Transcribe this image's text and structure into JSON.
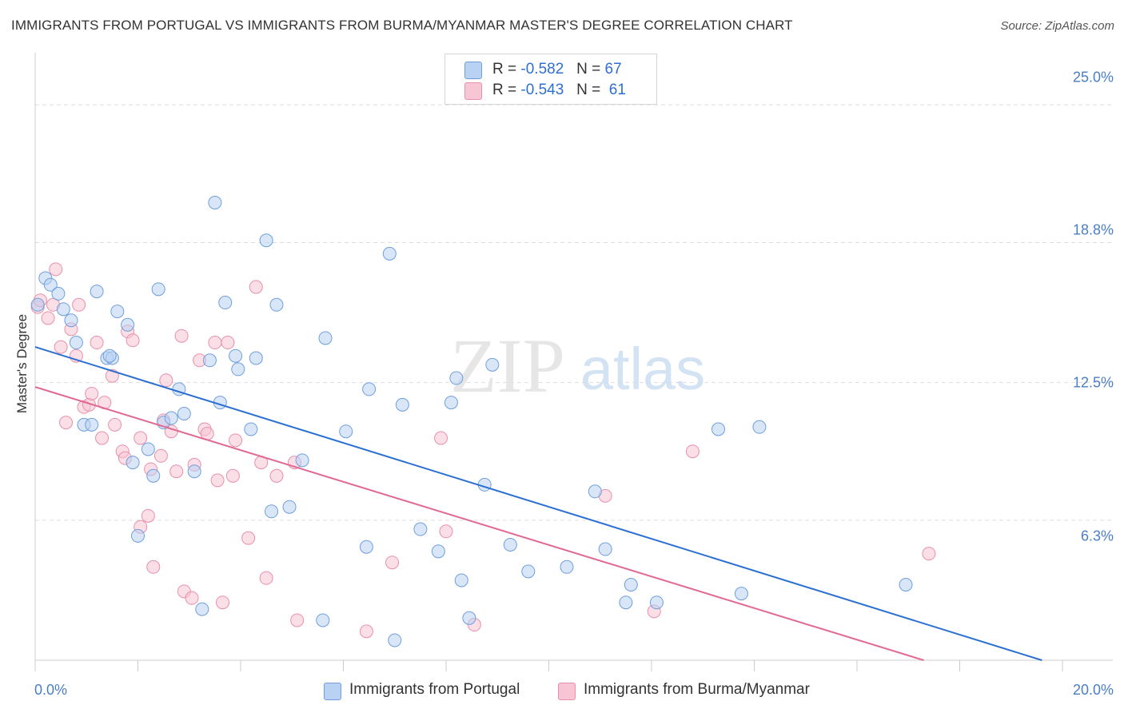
{
  "title": "IMMIGRANTS FROM PORTUGAL VS IMMIGRANTS FROM BURMA/MYANMAR MASTER'S DEGREE CORRELATION CHART",
  "source": "Source: ZipAtlas.com",
  "watermark": {
    "zip": "ZIP",
    "atlas": "atlas"
  },
  "colors": {
    "blue_fill": "#b9d2f3",
    "blue_stroke": "#6e9fdc",
    "blue_line": "#2b6fd1",
    "pink_fill": "#f7c5d3",
    "pink_stroke": "#e890ab",
    "pink_line": "#e06a94",
    "grid": "#dddddd",
    "axis_text": "#4a7fc6"
  },
  "legend": {
    "r_label": "R =",
    "n_label": "N =",
    "series": [
      {
        "r": "-0.582",
        "n": "67"
      },
      {
        "r": "-0.543",
        "n": "61"
      }
    ]
  },
  "bottom_legend": [
    "Immigrants from Portugal",
    "Immigrants from Burma/Myanmar"
  ],
  "chart_data": {
    "type": "scatter",
    "title": "IMMIGRANTS FROM PORTUGAL VS IMMIGRANTS FROM BURMA/MYANMAR MASTER'S DEGREE CORRELATION CHART",
    "xlabel": "",
    "ylabel": "Master's Degree",
    "xlim": [
      0,
      20
    ],
    "ylim": [
      0,
      27.2
    ],
    "x_tick_labels": [
      "0.0%",
      "20.0%"
    ],
    "y_ticks": [
      6.3,
      12.5,
      18.8,
      25.0
    ],
    "y_tick_labels": [
      "6.3%",
      "12.5%",
      "18.8%",
      "25.0%"
    ],
    "grid": "horizontal dashed",
    "legend_position": "top-center",
    "series": [
      {
        "name": "Immigrants from Portugal",
        "r": -0.582,
        "n": 67,
        "trend": {
          "x0": 0,
          "y0": 14.1,
          "x1": 19.6,
          "y1": 0
        },
        "points": [
          [
            0.05,
            16.0
          ],
          [
            0.2,
            17.2
          ],
          [
            0.3,
            16.9
          ],
          [
            0.45,
            16.5
          ],
          [
            0.55,
            15.8
          ],
          [
            0.7,
            15.3
          ],
          [
            0.8,
            14.3
          ],
          [
            0.95,
            10.6
          ],
          [
            1.1,
            10.6
          ],
          [
            1.2,
            16.6
          ],
          [
            1.4,
            13.6
          ],
          [
            1.5,
            13.6
          ],
          [
            1.6,
            15.7
          ],
          [
            1.8,
            15.1
          ],
          [
            1.9,
            8.9
          ],
          [
            2.0,
            5.6
          ],
          [
            2.2,
            9.5
          ],
          [
            2.3,
            8.3
          ],
          [
            2.4,
            16.7
          ],
          [
            2.5,
            10.7
          ],
          [
            2.65,
            10.9
          ],
          [
            2.8,
            12.2
          ],
          [
            2.9,
            11.1
          ],
          [
            3.1,
            8.5
          ],
          [
            3.25,
            2.3
          ],
          [
            3.4,
            13.5
          ],
          [
            3.5,
            20.6
          ],
          [
            3.6,
            11.6
          ],
          [
            3.7,
            16.1
          ],
          [
            3.9,
            13.7
          ],
          [
            3.95,
            13.1
          ],
          [
            4.2,
            10.4
          ],
          [
            4.3,
            13.6
          ],
          [
            4.5,
            18.9
          ],
          [
            4.6,
            6.7
          ],
          [
            4.7,
            16.0
          ],
          [
            4.95,
            6.9
          ],
          [
            5.2,
            9.0
          ],
          [
            5.6,
            1.8
          ],
          [
            5.65,
            14.5
          ],
          [
            6.05,
            10.3
          ],
          [
            6.45,
            5.1
          ],
          [
            6.5,
            12.2
          ],
          [
            6.9,
            18.3
          ],
          [
            7.0,
            0.9
          ],
          [
            7.15,
            11.5
          ],
          [
            7.5,
            5.9
          ],
          [
            7.85,
            4.9
          ],
          [
            8.1,
            11.6
          ],
          [
            8.2,
            12.7
          ],
          [
            8.3,
            3.6
          ],
          [
            8.45,
            1.9
          ],
          [
            8.75,
            7.9
          ],
          [
            8.9,
            13.3
          ],
          [
            9.25,
            5.2
          ],
          [
            9.6,
            4.0
          ],
          [
            10.35,
            4.2
          ],
          [
            10.9,
            7.6
          ],
          [
            11.1,
            5.0
          ],
          [
            11.5,
            2.6
          ],
          [
            11.6,
            3.4
          ],
          [
            12.1,
            2.6
          ],
          [
            13.3,
            10.4
          ],
          [
            13.75,
            3.0
          ],
          [
            14.1,
            10.5
          ],
          [
            16.95,
            3.4
          ],
          [
            1.45,
            13.7
          ]
        ]
      },
      {
        "name": "Immigrants from Burma/Myanmar",
        "r": -0.543,
        "n": 61,
        "trend": {
          "x0": 0,
          "y0": 12.3,
          "x1": 17.3,
          "y1": 0
        },
        "points": [
          [
            0.05,
            15.9
          ],
          [
            0.1,
            16.2
          ],
          [
            0.25,
            15.4
          ],
          [
            0.35,
            16.0
          ],
          [
            0.4,
            17.6
          ],
          [
            0.5,
            14.1
          ],
          [
            0.6,
            10.7
          ],
          [
            0.7,
            14.9
          ],
          [
            0.8,
            13.7
          ],
          [
            0.85,
            16.0
          ],
          [
            0.95,
            11.4
          ],
          [
            1.05,
            11.5
          ],
          [
            1.1,
            12.0
          ],
          [
            1.2,
            14.3
          ],
          [
            1.3,
            10.0
          ],
          [
            1.35,
            11.6
          ],
          [
            1.5,
            12.8
          ],
          [
            1.55,
            10.6
          ],
          [
            1.7,
            9.4
          ],
          [
            1.75,
            9.1
          ],
          [
            1.8,
            14.8
          ],
          [
            1.9,
            14.4
          ],
          [
            2.05,
            6.0
          ],
          [
            2.05,
            10.0
          ],
          [
            2.2,
            6.5
          ],
          [
            2.25,
            8.6
          ],
          [
            2.3,
            4.2
          ],
          [
            2.45,
            9.2
          ],
          [
            2.5,
            10.8
          ],
          [
            2.55,
            12.6
          ],
          [
            2.65,
            10.3
          ],
          [
            2.75,
            8.5
          ],
          [
            2.85,
            14.6
          ],
          [
            2.9,
            3.1
          ],
          [
            3.05,
            2.8
          ],
          [
            3.1,
            8.8
          ],
          [
            3.2,
            13.5
          ],
          [
            3.3,
            10.4
          ],
          [
            3.35,
            10.2
          ],
          [
            3.5,
            14.3
          ],
          [
            3.55,
            8.1
          ],
          [
            3.65,
            2.6
          ],
          [
            3.75,
            14.3
          ],
          [
            3.85,
            8.3
          ],
          [
            3.9,
            9.9
          ],
          [
            4.15,
            5.5
          ],
          [
            4.3,
            16.8
          ],
          [
            4.4,
            8.9
          ],
          [
            4.5,
            3.7
          ],
          [
            4.7,
            8.3
          ],
          [
            5.05,
            8.9
          ],
          [
            5.1,
            1.8
          ],
          [
            6.45,
            1.3
          ],
          [
            6.95,
            4.4
          ],
          [
            7.9,
            10.0
          ],
          [
            8.0,
            5.8
          ],
          [
            8.55,
            1.6
          ],
          [
            11.1,
            7.4
          ],
          [
            12.05,
            2.2
          ],
          [
            12.8,
            9.4
          ],
          [
            17.4,
            4.8
          ]
        ]
      }
    ]
  }
}
